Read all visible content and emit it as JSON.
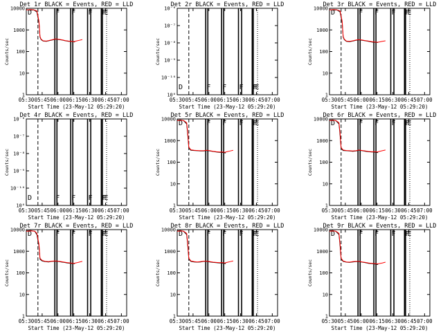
{
  "panels": [
    {
      "title": "Det 1r BLACK = Events, RED = LLD",
      "scale": "counts",
      "yticks": [
        "10000",
        "1000",
        "100",
        "10",
        "1"
      ],
      "series": {
        "black": [
          [
            0,
            10500
          ],
          [
            4,
            9800
          ],
          [
            7,
            10200
          ],
          [
            10,
            8000
          ],
          [
            12,
            2500
          ],
          [
            13,
            520
          ],
          [
            14,
            400
          ],
          [
            16,
            340
          ],
          [
            19,
            330
          ],
          [
            22,
            360
          ],
          [
            25,
            390
          ],
          [
            28,
            420
          ],
          [
            31,
            400
          ],
          [
            34,
            380
          ],
          [
            37,
            350
          ],
          [
            40,
            330
          ],
          [
            42,
            330
          ],
          [
            44,
            320
          ],
          [
            46,
            310
          ]
        ],
        "red": [
          [
            0,
            10000
          ],
          [
            4,
            10500
          ],
          [
            7,
            10200
          ],
          [
            10,
            9000
          ],
          [
            12,
            3000
          ],
          [
            13,
            560
          ],
          [
            14,
            420
          ],
          [
            16,
            350
          ],
          [
            19,
            340
          ],
          [
            22,
            370
          ],
          [
            25,
            400
          ],
          [
            28,
            430
          ],
          [
            31,
            410
          ],
          [
            34,
            390
          ],
          [
            37,
            360
          ],
          [
            40,
            340
          ],
          [
            43,
            330
          ],
          [
            45,
            320
          ],
          [
            47,
            340
          ],
          [
            50,
            370
          ],
          [
            53,
            400
          ]
        ]
      }
    },
    {
      "title": "Det 2r BLACK = Events, RED = LLD",
      "scale": "tiny",
      "yticks": [
        "10⁻⁶",
        "10⁻⁷",
        "10⁻⁸",
        "10⁻⁹",
        "10⁻¹⁰",
        "10⁰"
      ],
      "series": null
    },
    {
      "title": "Det 3r BLACK = Events, RED = LLD",
      "scale": "counts",
      "yticks": [
        "10000",
        "1000",
        "100",
        "10",
        "1"
      ],
      "series": {
        "black": [
          [
            0,
            10500
          ],
          [
            4,
            9800
          ],
          [
            7,
            10200
          ],
          [
            10,
            8000
          ],
          [
            12,
            2500
          ],
          [
            13,
            520
          ],
          [
            14,
            400
          ],
          [
            16,
            330
          ],
          [
            19,
            320
          ],
          [
            22,
            340
          ],
          [
            25,
            370
          ],
          [
            28,
            390
          ],
          [
            31,
            370
          ],
          [
            34,
            350
          ],
          [
            37,
            330
          ],
          [
            40,
            310
          ],
          [
            42,
            300
          ],
          [
            44,
            300
          ],
          [
            46,
            290
          ]
        ],
        "red": [
          [
            0,
            10000
          ],
          [
            4,
            10500
          ],
          [
            7,
            10200
          ],
          [
            10,
            9000
          ],
          [
            12,
            3000
          ],
          [
            13,
            560
          ],
          [
            14,
            420
          ],
          [
            16,
            340
          ],
          [
            19,
            330
          ],
          [
            22,
            350
          ],
          [
            25,
            380
          ],
          [
            28,
            400
          ],
          [
            31,
            380
          ],
          [
            34,
            360
          ],
          [
            37,
            340
          ],
          [
            40,
            320
          ],
          [
            43,
            310
          ],
          [
            45,
            300
          ],
          [
            47,
            310
          ],
          [
            50,
            330
          ],
          [
            53,
            350
          ]
        ]
      }
    },
    {
      "title": "Det 4r BLACK = Events, RED = LLD",
      "scale": "tiny",
      "yticks": [
        "10⁻⁶",
        "10⁻⁷",
        "10⁻⁸",
        "10⁻⁹",
        "10⁻¹⁰",
        "10⁰"
      ],
      "series": null
    },
    {
      "title": "Det 5r BLACK = Events, RED = LLD",
      "scale": "counts",
      "yticks": [
        "10000",
        "1000",
        "100",
        "10",
        "1"
      ],
      "series": {
        "black": [
          [
            0,
            10500
          ],
          [
            3,
            11000
          ],
          [
            6,
            10000
          ],
          [
            9,
            7000
          ],
          [
            10,
            2000
          ],
          [
            11,
            500
          ],
          [
            13,
            400
          ],
          [
            16,
            390
          ],
          [
            19,
            380
          ],
          [
            22,
            370
          ],
          [
            25,
            370
          ],
          [
            28,
            390
          ],
          [
            31,
            370
          ],
          [
            34,
            350
          ],
          [
            37,
            330
          ],
          [
            40,
            320
          ],
          [
            42,
            320
          ],
          [
            44,
            310
          ],
          [
            46,
            300
          ]
        ],
        "red": [
          [
            0,
            10000
          ],
          [
            3,
            10500
          ],
          [
            6,
            10200
          ],
          [
            9,
            8000
          ],
          [
            10,
            2500
          ],
          [
            11,
            560
          ],
          [
            13,
            420
          ],
          [
            16,
            400
          ],
          [
            19,
            390
          ],
          [
            22,
            380
          ],
          [
            25,
            380
          ],
          [
            28,
            400
          ],
          [
            31,
            380
          ],
          [
            34,
            360
          ],
          [
            37,
            340
          ],
          [
            40,
            330
          ],
          [
            43,
            330
          ],
          [
            45,
            320
          ],
          [
            47,
            340
          ],
          [
            50,
            370
          ],
          [
            53,
            400
          ]
        ]
      }
    },
    {
      "title": "Det 6r BLACK = Events, RED = LLD",
      "scale": "counts",
      "yticks": [
        "10000",
        "1000",
        "100",
        "10",
        "1"
      ],
      "series": {
        "black": [
          [
            0,
            10500
          ],
          [
            3,
            11000
          ],
          [
            6,
            10000
          ],
          [
            9,
            7000
          ],
          [
            10,
            2000
          ],
          [
            11,
            480
          ],
          [
            13,
            390
          ],
          [
            16,
            380
          ],
          [
            19,
            370
          ],
          [
            22,
            360
          ],
          [
            25,
            370
          ],
          [
            28,
            400
          ],
          [
            31,
            380
          ],
          [
            34,
            360
          ],
          [
            37,
            340
          ],
          [
            40,
            330
          ],
          [
            42,
            330
          ],
          [
            44,
            320
          ],
          [
            46,
            310
          ]
        ],
        "red": [
          [
            0,
            10000
          ],
          [
            3,
            10500
          ],
          [
            6,
            10200
          ],
          [
            9,
            8000
          ],
          [
            10,
            2500
          ],
          [
            11,
            540
          ],
          [
            13,
            410
          ],
          [
            16,
            390
          ],
          [
            19,
            380
          ],
          [
            22,
            370
          ],
          [
            25,
            380
          ],
          [
            28,
            410
          ],
          [
            31,
            390
          ],
          [
            34,
            370
          ],
          [
            37,
            350
          ],
          [
            40,
            340
          ],
          [
            43,
            340
          ],
          [
            45,
            330
          ],
          [
            47,
            350
          ],
          [
            50,
            380
          ],
          [
            53,
            410
          ]
        ]
      }
    },
    {
      "title": "Det 7r BLACK = Events, RED = LLD",
      "scale": "counts",
      "yticks": [
        "10000",
        "1000",
        "100",
        "10",
        "1"
      ],
      "series": {
        "black": [
          [
            0,
            10500
          ],
          [
            4,
            11000
          ],
          [
            8,
            10000
          ],
          [
            10,
            7000
          ],
          [
            12,
            2000
          ],
          [
            13,
            480
          ],
          [
            15,
            400
          ],
          [
            18,
            370
          ],
          [
            21,
            360
          ],
          [
            24,
            380
          ],
          [
            27,
            390
          ],
          [
            30,
            380
          ],
          [
            33,
            360
          ],
          [
            36,
            340
          ],
          [
            39,
            320
          ],
          [
            42,
            310
          ],
          [
            44,
            300
          ],
          [
            46,
            300
          ]
        ],
        "red": [
          [
            0,
            10000
          ],
          [
            4,
            10500
          ],
          [
            8,
            10200
          ],
          [
            10,
            8000
          ],
          [
            12,
            2500
          ],
          [
            13,
            540
          ],
          [
            15,
            420
          ],
          [
            18,
            380
          ],
          [
            21,
            370
          ],
          [
            24,
            390
          ],
          [
            27,
            400
          ],
          [
            30,
            390
          ],
          [
            33,
            370
          ],
          [
            36,
            350
          ],
          [
            39,
            330
          ],
          [
            42,
            320
          ],
          [
            45,
            310
          ],
          [
            48,
            330
          ],
          [
            50,
            350
          ],
          [
            53,
            380
          ]
        ]
      }
    },
    {
      "title": "Det 8r BLACK = Events, RED = LLD",
      "scale": "counts",
      "yticks": [
        "10000",
        "1000",
        "100",
        "10",
        "1"
      ],
      "series": {
        "black": [
          [
            0,
            10500
          ],
          [
            3,
            11000
          ],
          [
            6,
            10000
          ],
          [
            9,
            7000
          ],
          [
            10,
            2000
          ],
          [
            11,
            480
          ],
          [
            13,
            380
          ],
          [
            16,
            360
          ],
          [
            19,
            350
          ],
          [
            22,
            360
          ],
          [
            25,
            380
          ],
          [
            28,
            380
          ],
          [
            31,
            360
          ],
          [
            34,
            340
          ],
          [
            37,
            330
          ],
          [
            40,
            320
          ],
          [
            42,
            320
          ],
          [
            44,
            310
          ],
          [
            46,
            300
          ]
        ],
        "red": [
          [
            0,
            10000
          ],
          [
            3,
            10500
          ],
          [
            6,
            10200
          ],
          [
            9,
            8000
          ],
          [
            10,
            2500
          ],
          [
            11,
            540
          ],
          [
            13,
            400
          ],
          [
            16,
            370
          ],
          [
            19,
            360
          ],
          [
            22,
            370
          ],
          [
            25,
            390
          ],
          [
            28,
            390
          ],
          [
            31,
            370
          ],
          [
            34,
            350
          ],
          [
            37,
            340
          ],
          [
            40,
            330
          ],
          [
            43,
            330
          ],
          [
            45,
            320
          ],
          [
            47,
            340
          ],
          [
            50,
            370
          ],
          [
            53,
            400
          ]
        ]
      }
    },
    {
      "title": "Det 9r BLACK = Events, RED = LLD",
      "scale": "counts",
      "yticks": [
        "10000",
        "1000",
        "100",
        "10",
        "1"
      ],
      "series": {
        "black": [
          [
            0,
            10500
          ],
          [
            3,
            11000
          ],
          [
            6,
            10000
          ],
          [
            9,
            7000
          ],
          [
            10,
            2000
          ],
          [
            11,
            480
          ],
          [
            13,
            380
          ],
          [
            16,
            350
          ],
          [
            19,
            340
          ],
          [
            22,
            360
          ],
          [
            25,
            370
          ],
          [
            28,
            370
          ],
          [
            31,
            350
          ],
          [
            34,
            330
          ],
          [
            37,
            310
          ],
          [
            40,
            300
          ],
          [
            42,
            290
          ],
          [
            44,
            280
          ],
          [
            46,
            270
          ]
        ],
        "red": [
          [
            0,
            10000
          ],
          [
            3,
            10500
          ],
          [
            6,
            10200
          ],
          [
            9,
            8000
          ],
          [
            10,
            2500
          ],
          [
            11,
            540
          ],
          [
            13,
            400
          ],
          [
            16,
            360
          ],
          [
            19,
            350
          ],
          [
            22,
            370
          ],
          [
            25,
            380
          ],
          [
            28,
            380
          ],
          [
            31,
            360
          ],
          [
            34,
            340
          ],
          [
            37,
            320
          ],
          [
            40,
            310
          ],
          [
            43,
            300
          ],
          [
            45,
            290
          ],
          [
            47,
            300
          ],
          [
            50,
            320
          ],
          [
            53,
            350
          ]
        ]
      }
    }
  ],
  "chart_data": {
    "type": "line",
    "x_ticks": [
      "05:30",
      "05:45",
      "06:00",
      "06:15",
      "06:30",
      "06:45",
      "07:00"
    ],
    "x_range_minutes_after_0530": [
      0,
      95
    ],
    "xlabel": "Start Time (23-May-12 05:29:20)",
    "ylabel": "Counts/sec",
    "counts_yscale": "log",
    "counts_ylim": [
      1,
      12000
    ],
    "markers": [
      {
        "label": "D",
        "time": "05:30"
      },
      {
        "label": "F",
        "time": "05:57"
      },
      {
        "label": "F",
        "time": "06:12"
      },
      {
        "label": "F",
        "time": "06:28"
      },
      {
        "label": "F",
        "time": "06:41"
      },
      {
        "label": "E",
        "time": "06:43"
      }
    ],
    "solid_vertical_times": [
      "05:57",
      "05:59",
      "06:12",
      "06:14",
      "06:28",
      "06:31",
      "06:41",
      "06:42"
    ],
    "dashed_vertical_times": [
      "05:41"
    ],
    "dotted_vertical_times": [
      "06:46"
    ],
    "series_colors": {
      "events": "#000000",
      "lld": "#ff0000"
    }
  }
}
